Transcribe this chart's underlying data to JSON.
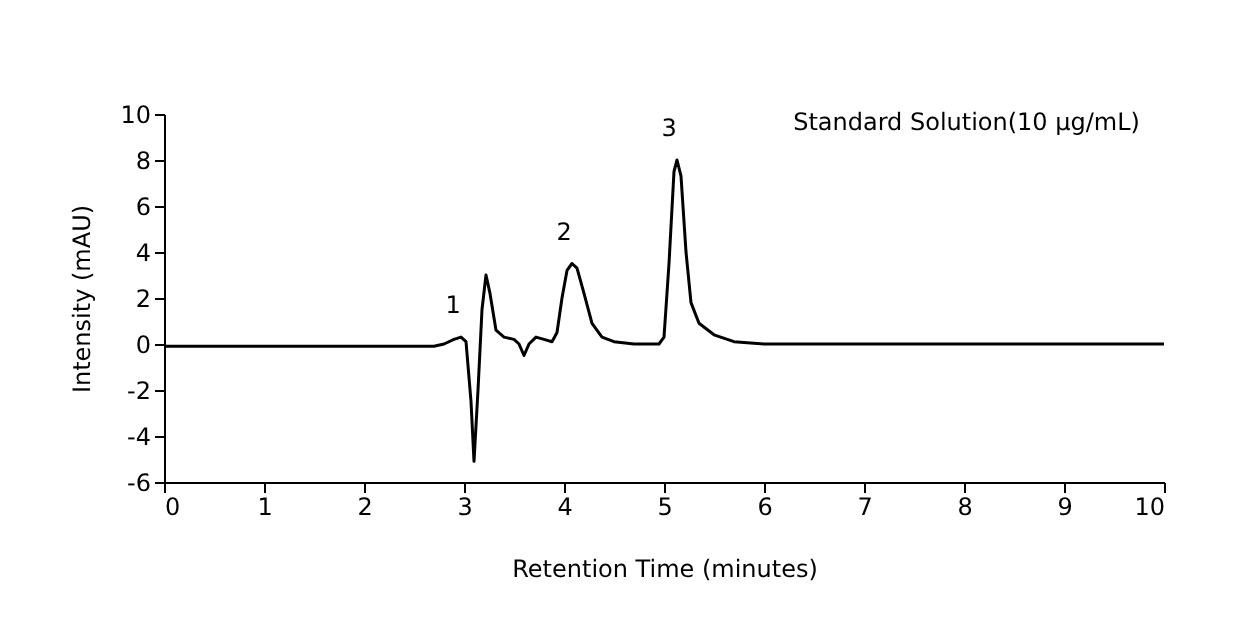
{
  "chart_data": {
    "type": "line",
    "xlabel": "Retention Time (minutes)",
    "ylabel": "Intensity (mAU)",
    "xlim": [
      0,
      10
    ],
    "xticks": [
      0,
      1,
      2,
      3,
      4,
      5,
      6,
      7,
      8,
      9,
      10
    ],
    "ylim": [
      -6,
      10
    ],
    "yticks": [
      -6,
      -4,
      -2,
      0,
      2,
      4,
      6,
      8,
      10
    ],
    "grid": false,
    "marker": "none",
    "line_style": "solid",
    "x": [
      0,
      1,
      2,
      2.7,
      2.8,
      2.9,
      2.97,
      3.02,
      3.07,
      3.1,
      3.14,
      3.18,
      3.22,
      3.26,
      3.32,
      3.4,
      3.5,
      3.55,
      3.6,
      3.65,
      3.72,
      3.8,
      3.88,
      3.93,
      3.98,
      4.03,
      4.08,
      4.13,
      4.2,
      4.28,
      4.38,
      4.5,
      4.7,
      4.95,
      5.0,
      5.05,
      5.1,
      5.13,
      5.17,
      5.22,
      5.27,
      5.35,
      5.5,
      5.7,
      6.0,
      7,
      8,
      9,
      10
    ],
    "series": [
      {
        "color": "#000000",
        "values": [
          -0.1,
          -0.1,
          -0.1,
          -0.1,
          0.0,
          0.2,
          0.3,
          0.1,
          -2.5,
          -5.1,
          -2.0,
          1.5,
          3.0,
          2.2,
          0.6,
          0.3,
          0.2,
          0.0,
          -0.5,
          0.0,
          0.3,
          0.2,
          0.1,
          0.5,
          2.0,
          3.2,
          3.5,
          3.3,
          2.2,
          0.9,
          0.3,
          0.1,
          0.0,
          0.0,
          0.3,
          3.5,
          7.5,
          8.0,
          7.3,
          4.0,
          1.8,
          0.9,
          0.4,
          0.1,
          0.0,
          0.0,
          0.0,
          0.0,
          0.0
        ]
      }
    ],
    "annotations": [
      {
        "text": "1",
        "x": 2.97,
        "y": 0.3
      },
      {
        "text": "2",
        "x": 4.08,
        "y": 3.5
      },
      {
        "text": "3",
        "x": 5.13,
        "y": 8.0
      },
      "Standard Solution(10 μg/mL)"
    ]
  }
}
